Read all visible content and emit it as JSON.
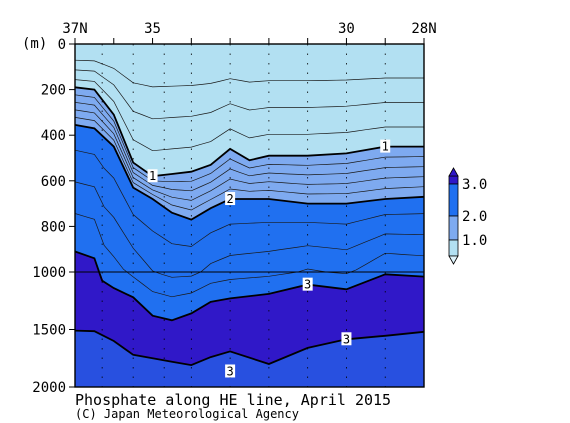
{
  "title": "Phosphate along HE line, April 2015",
  "credit": "(C) Japan Meteorological Agency",
  "chart_data": {
    "type": "heatmap",
    "title": "Phosphate along HE line, April 2015",
    "x_axis": {
      "position": "top",
      "range": [
        37,
        28
      ],
      "ticks": [
        {
          "value": 37,
          "label": "37N"
        },
        {
          "value": 35,
          "label": "35"
        },
        {
          "value": 30,
          "label": "30"
        },
        {
          "value": 28,
          "label": "28N"
        }
      ]
    },
    "y_axis": {
      "unit": "(m)",
      "range": [
        0,
        2000
      ],
      "upper_panel": [
        0,
        1000
      ],
      "lower_panel": [
        1000,
        2000
      ],
      "ticks": [
        0,
        200,
        400,
        600,
        800,
        1000,
        1500,
        2000
      ]
    },
    "legend": {
      "position": "right",
      "levels": [
        "1.0",
        "2.0",
        "3.0"
      ],
      "colors": [
        "#b2e0f2",
        "#7eaaf0",
        "#2070f0",
        "#2850e0",
        "#3018c8"
      ]
    },
    "contour_labels": [
      {
        "text": "1",
        "lat": 35.0,
        "depth": 580
      },
      {
        "text": "1",
        "lat": 29.0,
        "depth": 450
      },
      {
        "text": "2",
        "lat": 33.0,
        "depth": 680
      },
      {
        "text": "3",
        "lat": 31.0,
        "depth": 1110
      },
      {
        "text": "3",
        "lat": 30.0,
        "depth": 1585
      },
      {
        "text": "3",
        "lat": 33.0,
        "depth": 1865
      }
    ],
    "contours": [
      {
        "level": 1.0,
        "bold": true,
        "points": [
          [
            37,
            190
          ],
          [
            36.5,
            200
          ],
          [
            36.0,
            310
          ],
          [
            35.5,
            520
          ],
          [
            35,
            580
          ],
          [
            34.5,
            570
          ],
          [
            34,
            560
          ],
          [
            33.5,
            530
          ],
          [
            33,
            460
          ],
          [
            32.5,
            510
          ],
          [
            32,
            490
          ],
          [
            31,
            490
          ],
          [
            30,
            480
          ],
          [
            29,
            450
          ],
          [
            28,
            450
          ]
        ]
      },
      {
        "level": 2.0,
        "bold": true,
        "points": [
          [
            37,
            355
          ],
          [
            36.5,
            370
          ],
          [
            36.0,
            450
          ],
          [
            35.5,
            630
          ],
          [
            35,
            680
          ],
          [
            34.5,
            740
          ],
          [
            34,
            770
          ],
          [
            33.5,
            720
          ],
          [
            33,
            680
          ],
          [
            32,
            680
          ],
          [
            31,
            700
          ],
          [
            30,
            700
          ],
          [
            29,
            680
          ],
          [
            28,
            670
          ]
        ]
      },
      {
        "level": 3.0,
        "bold": true,
        "points": [
          [
            37,
            910
          ],
          [
            36.5,
            940
          ],
          [
            36.3,
            1075
          ],
          [
            36,
            1140
          ],
          [
            35.5,
            1220
          ],
          [
            35,
            1380
          ],
          [
            34.5,
            1420
          ],
          [
            34,
            1360
          ],
          [
            33.5,
            1260
          ],
          [
            33,
            1230
          ],
          [
            32,
            1190
          ],
          [
            31,
            1110
          ],
          [
            30,
            1150
          ],
          [
            29,
            1020
          ],
          [
            28,
            1040
          ]
        ]
      },
      {
        "level": 3.0,
        "bold": true,
        "points": [
          [
            37,
            1510
          ],
          [
            36.5,
            1515
          ],
          [
            36,
            1600
          ],
          [
            35.5,
            1720
          ],
          [
            35,
            1750
          ],
          [
            34.5,
            1780
          ],
          [
            34,
            1810
          ],
          [
            33.5,
            1740
          ],
          [
            33,
            1690
          ],
          [
            32,
            1800
          ],
          [
            31,
            1660
          ],
          [
            30,
            1585
          ],
          [
            29,
            1555
          ],
          [
            28,
            1520
          ]
        ]
      }
    ]
  }
}
